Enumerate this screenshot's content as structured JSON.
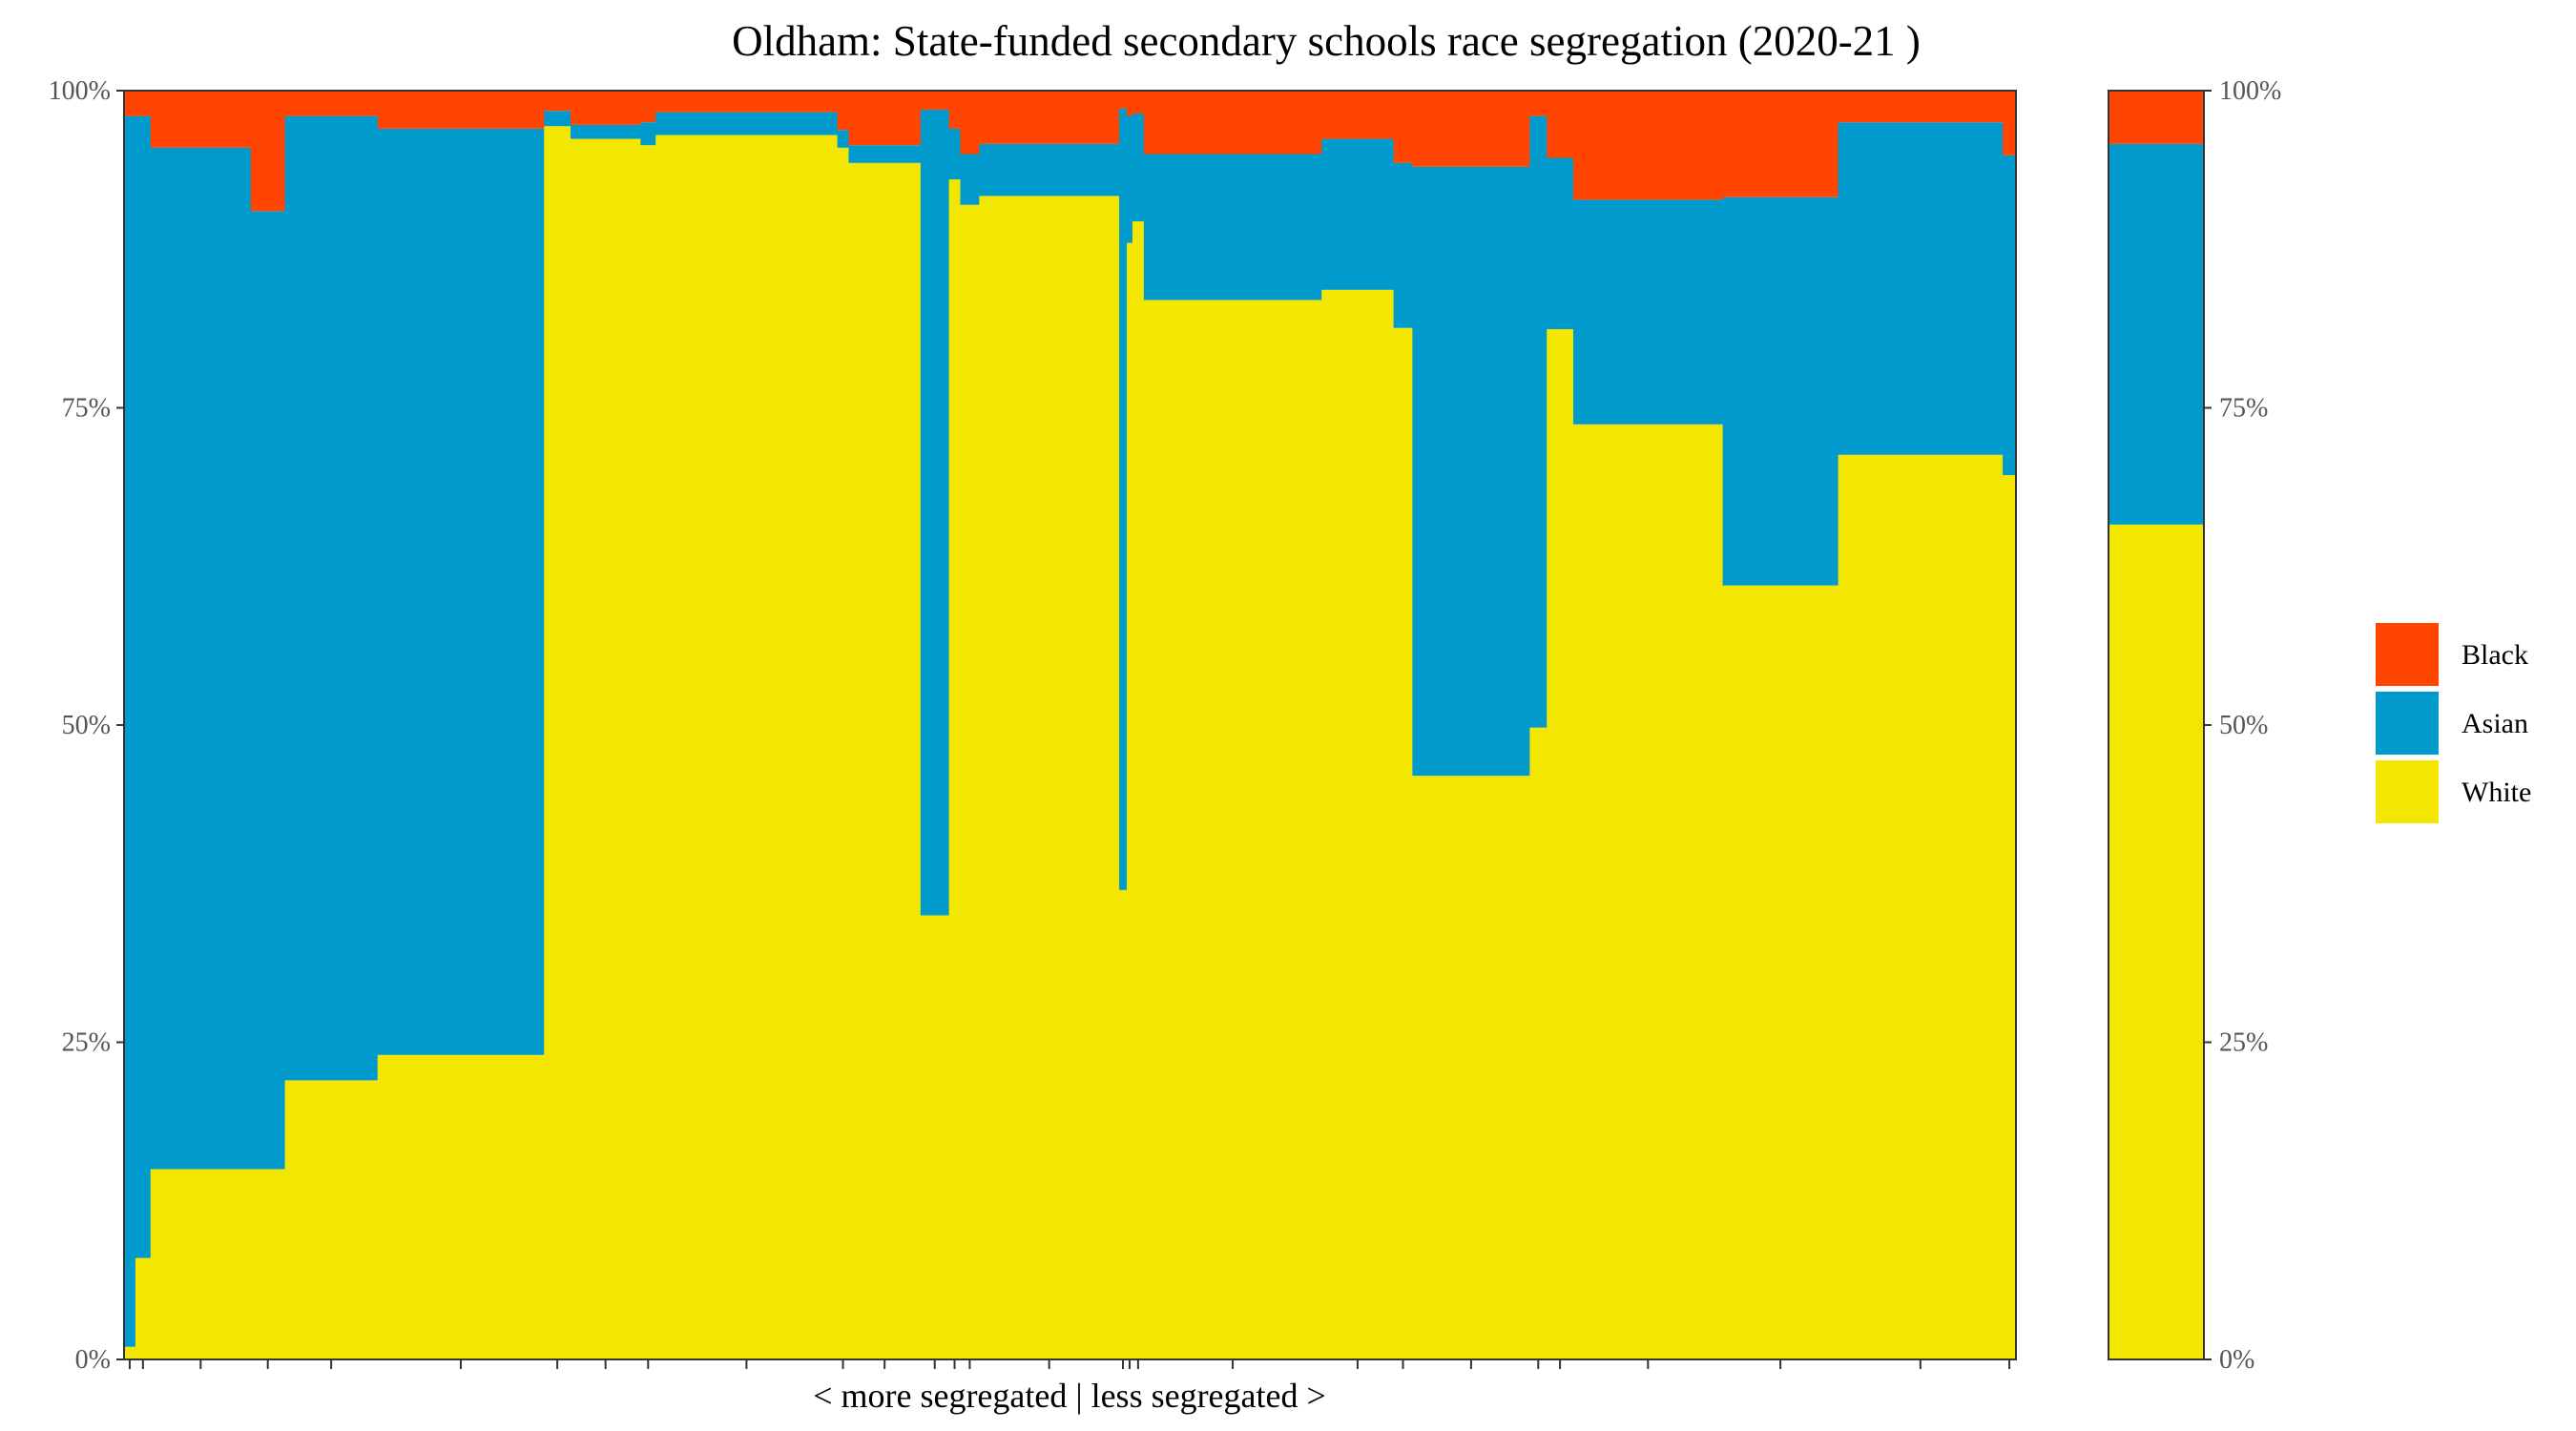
{
  "chart_data": {
    "type": "bar",
    "title": "Oldham: State-funded secondary schools race segregation (2020-21 )",
    "xlabel": "< more segregated | less segregated >",
    "ylabel": "",
    "ylim": [
      0,
      100
    ],
    "y_ticks": [
      "0%",
      "25%",
      "50%",
      "75%",
      "100%"
    ],
    "legend": {
      "position": "right",
      "entries": [
        {
          "name": "Black",
          "color": "#FF4500"
        },
        {
          "name": "Asian",
          "color": "#009ACD"
        },
        {
          "name": "White",
          "color": "#F3E600"
        }
      ]
    },
    "series_order": [
      "White",
      "Asian",
      "Black"
    ],
    "colors": {
      "White": "#F3E600",
      "Asian": "#009ACD",
      "Black": "#FF4500"
    },
    "x_units": "cumulative share of pupils (%)",
    "schools": [
      {
        "x0": 0.0,
        "x1": 0.6,
        "white": 1.0,
        "asian": 97.0,
        "black": 2.0
      },
      {
        "x0": 0.6,
        "x1": 1.4,
        "white": 8.0,
        "asian": 90.0,
        "black": 2.0
      },
      {
        "x0": 1.4,
        "x1": 6.7,
        "white": 15.0,
        "asian": 80.5,
        "black": 4.5
      },
      {
        "x0": 6.7,
        "x1": 8.5,
        "white": 15.0,
        "asian": 75.5,
        "black": 9.5
      },
      {
        "x0": 8.5,
        "x1": 13.4,
        "white": 22.0,
        "asian": 76.0,
        "black": 2.0
      },
      {
        "x0": 13.4,
        "x1": 22.2,
        "white": 24.0,
        "asian": 73.0,
        "black": 3.0
      },
      {
        "x0": 22.2,
        "x1": 23.6,
        "white": 97.2,
        "asian": 1.2,
        "black": 1.6
      },
      {
        "x0": 23.6,
        "x1": 27.3,
        "white": 96.2,
        "asian": 1.1,
        "black": 2.7
      },
      {
        "x0": 27.3,
        "x1": 28.1,
        "white": 95.7,
        "asian": 1.8,
        "black": 2.5
      },
      {
        "x0": 28.1,
        "x1": 37.7,
        "white": 96.5,
        "asian": 1.8,
        "black": 1.7
      },
      {
        "x0": 37.7,
        "x1": 38.3,
        "white": 95.5,
        "asian": 1.4,
        "black": 3.1
      },
      {
        "x0": 38.3,
        "x1": 42.1,
        "white": 94.3,
        "asian": 1.4,
        "black": 4.3
      },
      {
        "x0": 42.1,
        "x1": 43.6,
        "white": 35.0,
        "asian": 63.5,
        "black": 1.5
      },
      {
        "x0": 43.6,
        "x1": 44.2,
        "white": 93.0,
        "asian": 4.0,
        "black": 3.0
      },
      {
        "x0": 44.2,
        "x1": 45.2,
        "white": 91.0,
        "asian": 4.0,
        "black": 5.0
      },
      {
        "x0": 45.2,
        "x1": 52.6,
        "white": 91.7,
        "asian": 4.1,
        "black": 4.2
      },
      {
        "x0": 52.6,
        "x1": 53.0,
        "white": 37.0,
        "asian": 61.6,
        "black": 1.4
      },
      {
        "x0": 53.0,
        "x1": 53.3,
        "white": 88.0,
        "asian": 10.0,
        "black": 2.0
      },
      {
        "x0": 53.3,
        "x1": 53.9,
        "white": 89.7,
        "asian": 8.5,
        "black": 1.8
      },
      {
        "x0": 53.9,
        "x1": 63.3,
        "white": 83.5,
        "asian": 11.5,
        "black": 5.0
      },
      {
        "x0": 63.3,
        "x1": 67.1,
        "white": 84.3,
        "asian": 11.9,
        "black": 3.8
      },
      {
        "x0": 67.1,
        "x1": 68.1,
        "white": 81.3,
        "asian": 13.0,
        "black": 5.7
      },
      {
        "x0": 68.1,
        "x1": 74.3,
        "white": 46.0,
        "asian": 48.0,
        "black": 6.0
      },
      {
        "x0": 74.3,
        "x1": 75.2,
        "white": 49.8,
        "asian": 48.2,
        "black": 2.0
      },
      {
        "x0": 75.2,
        "x1": 76.6,
        "white": 81.2,
        "asian": 13.5,
        "black": 5.3
      },
      {
        "x0": 76.6,
        "x1": 84.5,
        "white": 73.7,
        "asian": 17.7,
        "black": 8.6
      },
      {
        "x0": 84.5,
        "x1": 90.6,
        "white": 61.0,
        "asian": 30.6,
        "black": 8.4
      },
      {
        "x0": 90.6,
        "x1": 99.3,
        "white": 71.3,
        "asian": 26.2,
        "black": 2.5
      },
      {
        "x0": 99.3,
        "x1": 100.0,
        "white": 69.7,
        "asian": 25.2,
        "black": 5.1
      }
    ],
    "overall": {
      "white": 65.8,
      "asian": 30.0,
      "black": 4.2
    }
  }
}
